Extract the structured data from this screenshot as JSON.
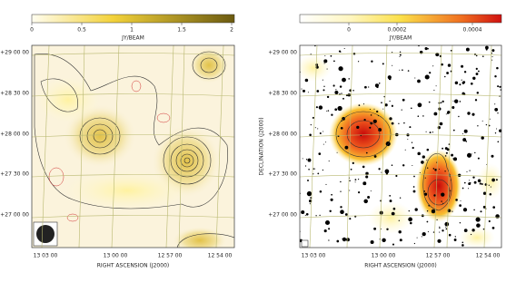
{
  "panels": [
    {
      "colorbar": {
        "ticks": [
          "0",
          "0.5",
          "1",
          "1.5",
          "2"
        ],
        "label": "JY/BEAM"
      },
      "yticks": [
        "+29 00 00",
        "+28 30 00",
        "+28 00 00",
        "+27 30 00",
        "+27 00 00"
      ],
      "xticks": [
        "13 03 00",
        "13 00 00",
        "12 57 00",
        "12 54 00"
      ],
      "xlabel": "RIGHT ASCENSION (J2000)"
    },
    {
      "colorbar": {
        "ticks": [
          "0",
          "0.0002",
          "0.0004"
        ],
        "label": "JY/BEAM"
      },
      "yticks": [
        "+29 00 00",
        "+28 30 00",
        "+28 00 00",
        "+27 30 00",
        "+27 00 00"
      ],
      "xticks": [
        "13 03 00",
        "13 00 00",
        "12 57 00",
        "12 54 00"
      ],
      "xlabel": "RIGHT ASCENSION (J2000)",
      "ylabel": "DECLINATION (J2000)"
    }
  ]
}
